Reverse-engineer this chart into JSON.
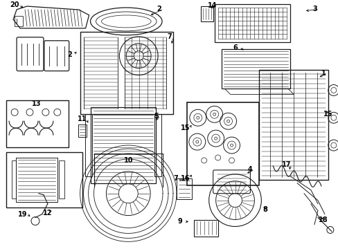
{
  "bg_color": "#ffffff",
  "line_color": "#1a1a1a",
  "figsize": [
    4.89,
    3.6
  ],
  "dpi": 100,
  "label_fontsize": 7.0
}
